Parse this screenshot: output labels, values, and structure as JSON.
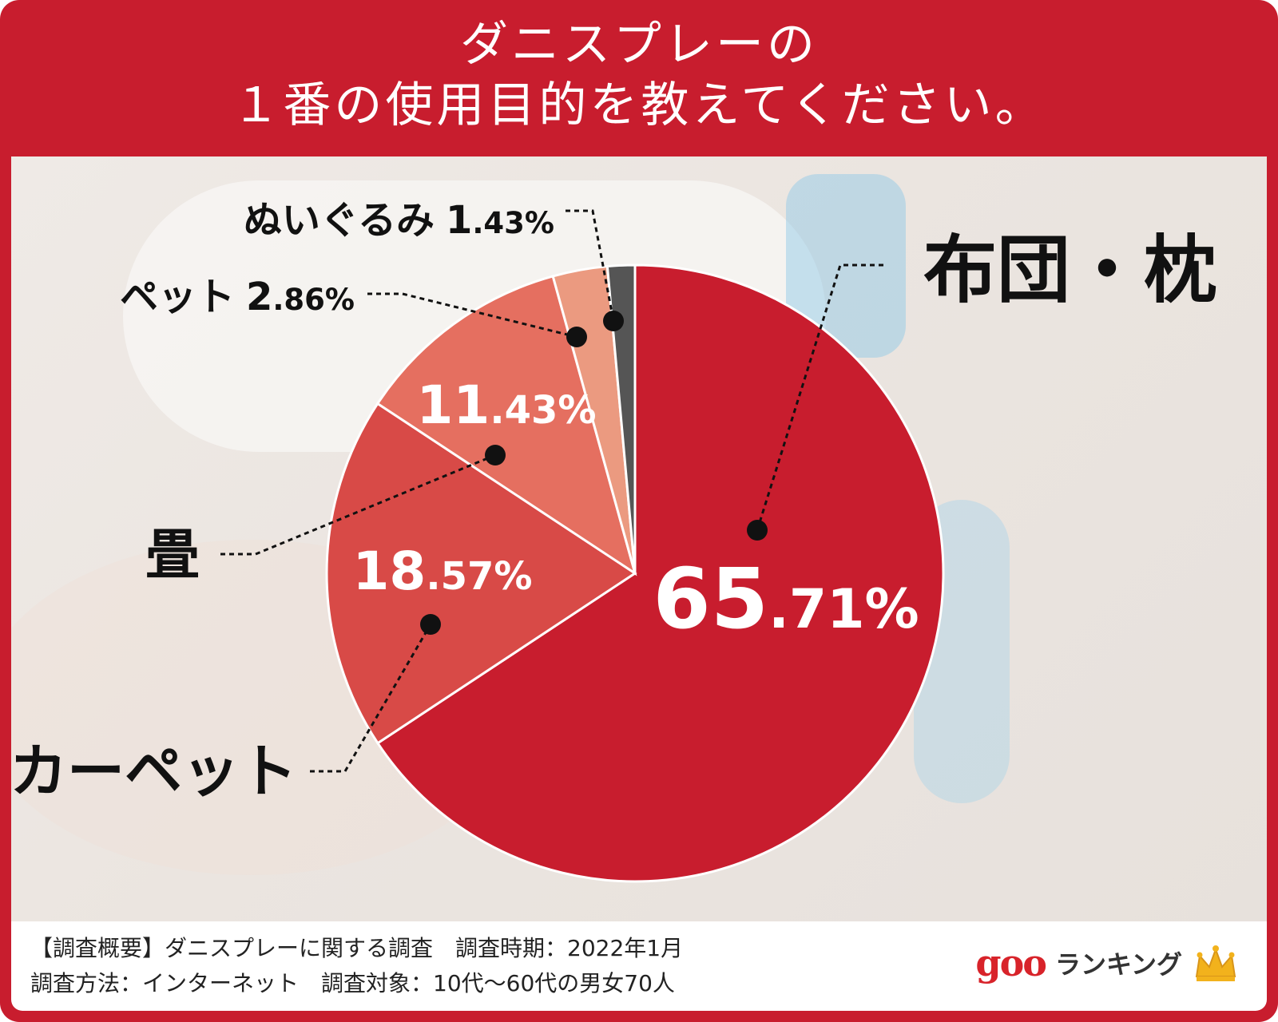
{
  "title_lines": [
    "ダニスプレーの",
    "１番の使用目的を教えてください。"
  ],
  "chart_data": {
    "type": "pie",
    "title": "ダニスプレーの１番の使用目的を教えてください。",
    "slices": [
      {
        "label": "布団・枕",
        "value": 65.71,
        "int_part": "65",
        "dec_part": ".71%",
        "color": "#c81d2e"
      },
      {
        "label": "カーペット",
        "value": 18.57,
        "int_part": "18",
        "dec_part": ".57%",
        "color": "#d84a47"
      },
      {
        "label": "畳",
        "value": 11.43,
        "int_part": "11",
        "dec_part": ".43%",
        "color": "#e56f60"
      },
      {
        "label": "ペット",
        "value": 2.86,
        "int_part": "2",
        "dec_part": ".86%",
        "color": "#eb9a80"
      },
      {
        "label": "ぬいぐるみ",
        "value": 1.43,
        "int_part": "1",
        "dec_part": ".43%",
        "color": "#555555"
      }
    ]
  },
  "footer": {
    "line1": "【調査概要】ダニスプレーに関する調査　調査時期：2022年1月",
    "line2": "調査方法：インターネット　調査対象：10代〜60代の男女70人",
    "logo_goo": "goo",
    "logo_rank": "ランキング",
    "crown_color": "#f2b21c"
  }
}
